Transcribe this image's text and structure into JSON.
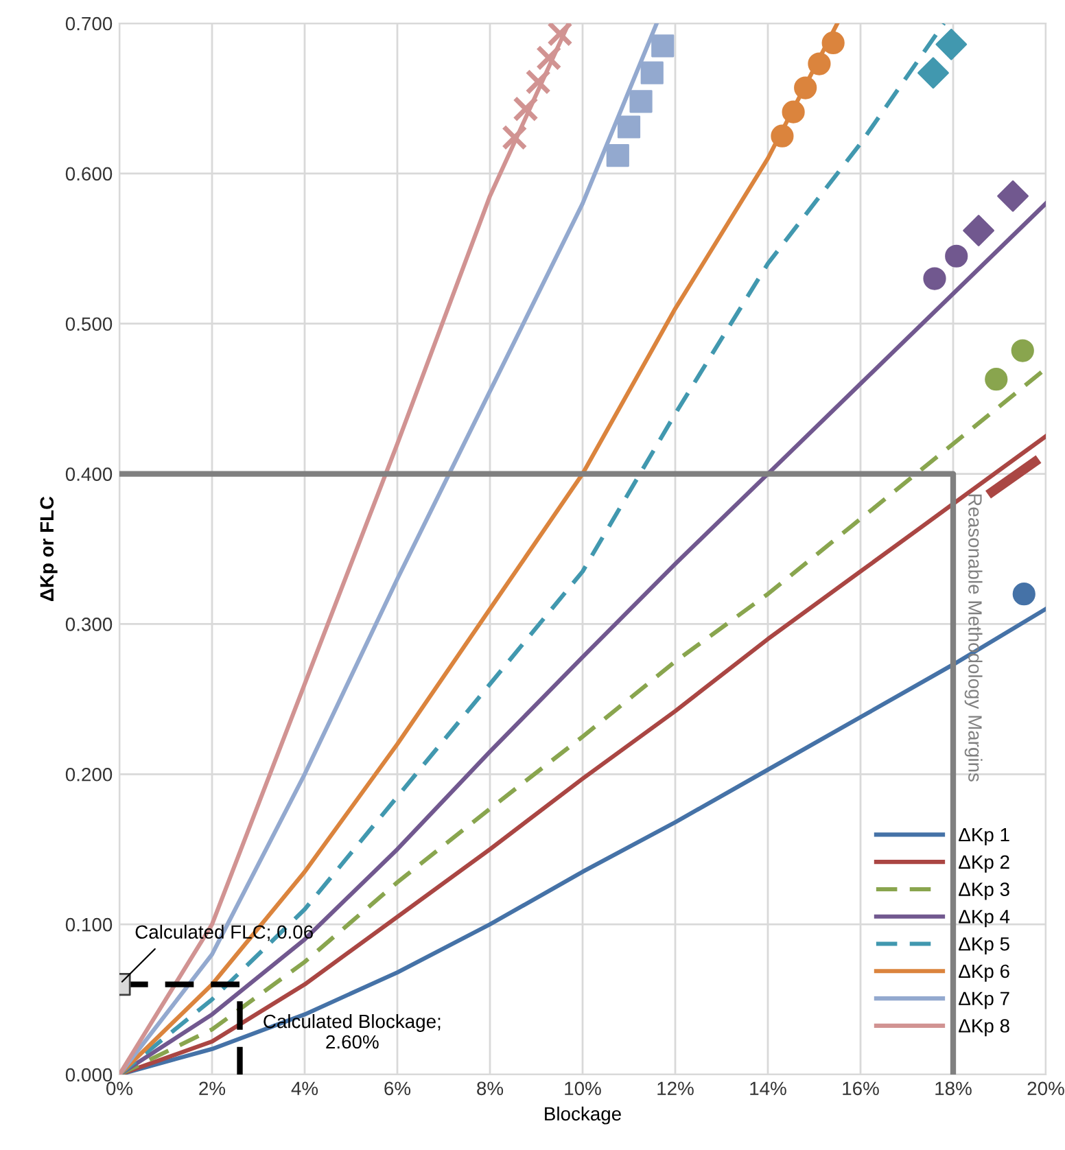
{
  "chart_data": {
    "type": "line",
    "xlabel": "Blockage",
    "ylabel": "ΔKp or FLC",
    "xlim": [
      0,
      20
    ],
    "ylim": [
      0,
      0.7
    ],
    "xticks": [
      {
        "value": 0,
        "label": "0%"
      },
      {
        "value": 2,
        "label": "2%"
      },
      {
        "value": 4,
        "label": "4%"
      },
      {
        "value": 6,
        "label": "6%"
      },
      {
        "value": 8,
        "label": "8%"
      },
      {
        "value": 10,
        "label": "10%"
      },
      {
        "value": 12,
        "label": "12%"
      },
      {
        "value": 14,
        "label": "14%"
      },
      {
        "value": 16,
        "label": "16%"
      },
      {
        "value": 18,
        "label": "18%"
      },
      {
        "value": 20,
        "label": "20%"
      }
    ],
    "yticks": [
      {
        "value": 0,
        "label": "0.000"
      },
      {
        "value": 0.1,
        "label": "0.100"
      },
      {
        "value": 0.2,
        "label": "0.200"
      },
      {
        "value": 0.3,
        "label": "0.300"
      },
      {
        "value": 0.4,
        "label": "0.400"
      },
      {
        "value": 0.5,
        "label": "0.500"
      },
      {
        "value": 0.6,
        "label": "0.600"
      },
      {
        "value": 0.7,
        "label": "0.700"
      }
    ],
    "grid": true,
    "legend": "bottom right",
    "series": [
      {
        "name": "ΔKp 1",
        "color": "#4572a7",
        "line_style": "solid",
        "x": [
          0,
          2,
          4,
          6,
          8,
          10,
          12,
          14,
          16,
          18,
          20
        ],
        "values": [
          0,
          0.017,
          0.04,
          0.068,
          0.1,
          0.135,
          0.168,
          0.203,
          0.238,
          0.273,
          0.31
        ]
      },
      {
        "name": "ΔKp 2",
        "color": "#aa4643",
        "line_style": "solid",
        "x": [
          0,
          2,
          4,
          6,
          8,
          10,
          12,
          14,
          16,
          18,
          20
        ],
        "values": [
          0,
          0.022,
          0.06,
          0.105,
          0.15,
          0.197,
          0.242,
          0.29,
          0.335,
          0.38,
          0.425
        ]
      },
      {
        "name": "ΔKp 3",
        "color": "#89a54e",
        "line_style": "dashed",
        "x": [
          0,
          2,
          4,
          6,
          8,
          10,
          12,
          14,
          16,
          18,
          20
        ],
        "values": [
          0,
          0.03,
          0.075,
          0.128,
          0.177,
          0.225,
          0.275,
          0.32,
          0.37,
          0.42,
          0.47
        ]
      },
      {
        "name": "ΔKp 4",
        "color": "#71588f",
        "line_style": "solid",
        "x": [
          0,
          2,
          4,
          6,
          8,
          10,
          12,
          14,
          16,
          18,
          20
        ],
        "values": [
          0,
          0.04,
          0.09,
          0.15,
          0.215,
          0.278,
          0.34,
          0.4,
          0.46,
          0.52,
          0.58
        ]
      },
      {
        "name": "ΔKp 5",
        "color": "#4198af",
        "line_style": "dashed",
        "x": [
          0,
          2,
          4,
          6,
          8,
          10,
          12,
          14,
          16,
          17.8
        ],
        "values": [
          0,
          0.05,
          0.11,
          0.185,
          0.26,
          0.335,
          0.44,
          0.54,
          0.62,
          0.7
        ]
      },
      {
        "name": "ΔKp 6",
        "color": "#db843d",
        "line_style": "solid",
        "x": [
          0,
          2,
          4,
          6,
          8,
          10,
          12,
          14,
          15.5
        ],
        "values": [
          0,
          0.06,
          0.135,
          0.22,
          0.31,
          0.4,
          0.51,
          0.61,
          0.7
        ]
      },
      {
        "name": "ΔKp 7",
        "color": "#93a9cf",
        "line_style": "solid",
        "x": [
          0,
          2,
          4,
          6,
          8,
          10,
          11.6
        ],
        "values": [
          0,
          0.08,
          0.2,
          0.33,
          0.455,
          0.58,
          0.7
        ]
      },
      {
        "name": "ΔKp 8",
        "color": "#d19392",
        "line_style": "solid",
        "x": [
          0,
          2,
          4,
          6,
          8,
          9.7
        ],
        "values": [
          0,
          0.1,
          0.26,
          0.42,
          0.585,
          0.7
        ]
      },
      {
        "type": "scatter",
        "color": "#4572a7",
        "marker": "circle",
        "x": [
          19.53
        ],
        "values": [
          0.32
        ]
      },
      {
        "type": "line",
        "color": "#aa4643",
        "line_style": "solid",
        "x": [
          18.84,
          19.76
        ],
        "values": [
          0.388,
          0.408
        ]
      },
      {
        "type": "scatter",
        "color": "#89a54e",
        "marker": "circle",
        "x": [
          18.93,
          19.5
        ],
        "values": [
          0.463,
          0.482
        ]
      },
      {
        "type": "scatter",
        "color": "#71588f",
        "marker": "circle",
        "x": [
          17.6,
          18.07
        ],
        "values": [
          0.53,
          0.545
        ]
      },
      {
        "type": "scatter",
        "color": "#71588f",
        "marker": "diamond",
        "x": [
          18.55,
          19.29
        ],
        "values": [
          0.562,
          0.585
        ]
      },
      {
        "type": "scatter",
        "color": "#4198af",
        "marker": "diamond",
        "x": [
          17.57,
          17.96
        ],
        "values": [
          0.667,
          0.686
        ]
      },
      {
        "type": "scatter",
        "color": "#db843d",
        "marker": "circle",
        "x": [
          14.31,
          14.55,
          14.81,
          15.11,
          15.41
        ],
        "values": [
          0.625,
          0.641,
          0.657,
          0.673,
          0.687
        ]
      },
      {
        "type": "scatter",
        "color": "#93a9cf",
        "marker": "square",
        "x": [
          10.76,
          11.0,
          11.26,
          11.5,
          11.73
        ],
        "values": [
          0.612,
          0.631,
          0.648,
          0.667,
          0.685
        ]
      },
      {
        "type": "scatter",
        "color": "#d19392",
        "marker": "cross",
        "x": [
          8.53,
          8.77,
          9.04,
          9.27,
          9.51
        ],
        "values": [
          0.624,
          0.643,
          0.661,
          0.677,
          0.693
        ]
      },
      {
        "type": "line",
        "color": "#808080",
        "line_style": "solid",
        "x": [
          0,
          18,
          18
        ],
        "values": [
          0.4,
          0.4,
          0
        ]
      },
      {
        "type": "line",
        "color": "#000000",
        "line_style": "dashed",
        "x": [
          0,
          2.6,
          2.6
        ],
        "values": [
          0.06,
          0.06,
          0
        ]
      },
      {
        "type": "scatter",
        "color": "#d9d9d9",
        "marker": "square",
        "x": [
          0
        ],
        "values": [
          0.06
        ]
      }
    ],
    "annotations": [
      {
        "text": "Calculated FLC; 0.06",
        "x": 0,
        "y": 0.06
      },
      {
        "text": "Calculated Blockage;\n2.60%",
        "x": 2.6,
        "y": 0.03
      },
      {
        "text": "Reasonable Methodology Margins",
        "x": 18,
        "y": 0.4
      }
    ]
  }
}
